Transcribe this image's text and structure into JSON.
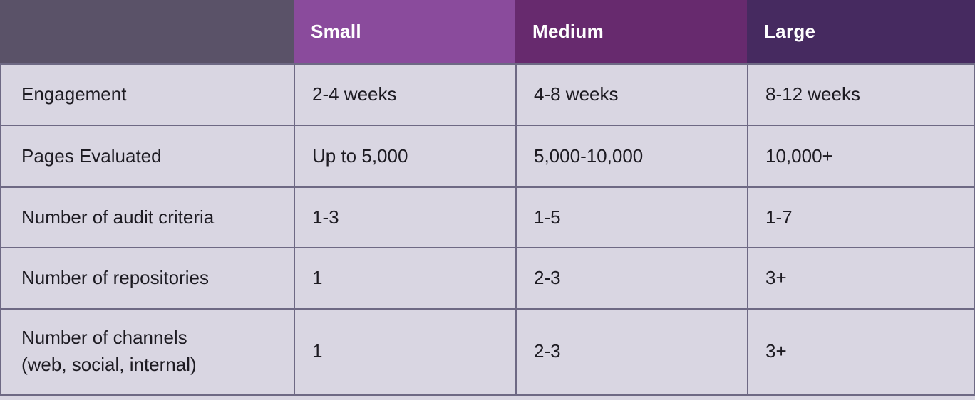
{
  "colors": {
    "header_blank_bg": "#5a5268",
    "header_small_bg": "#8a4b9c",
    "header_medium_bg": "#672a6e",
    "header_large_bg": "#462a60",
    "body_cell_bg": "#d9d6e2",
    "grid_line": "#6e6984",
    "header_text": "#ffffff",
    "body_text": "#1d1b22"
  },
  "chart_data": {
    "type": "table",
    "columns": [
      {
        "label": "",
        "bg": "#5a5268"
      },
      {
        "label": "Small",
        "bg": "#8a4b9c"
      },
      {
        "label": "Medium",
        "bg": "#672a6e"
      },
      {
        "label": "Large",
        "bg": "#462a60"
      }
    ],
    "rows": [
      {
        "label": "Engagement",
        "values": [
          "2-4 weeks",
          "4-8 weeks",
          "8-12 weeks"
        ]
      },
      {
        "label": "Pages Evaluated",
        "values": [
          "Up to 5,000",
          "5,000-10,000",
          "10,000+"
        ]
      },
      {
        "label": "Number of audit criteria",
        "values": [
          "1-3",
          "1-5",
          "1-7"
        ]
      },
      {
        "label": "Number of repositories",
        "values": [
          "1",
          "2-3",
          "3+"
        ]
      },
      {
        "label": "Number of channels",
        "label_line2": "(web, social, internal)",
        "values": [
          "1",
          "2-3",
          "3+"
        ]
      }
    ]
  }
}
